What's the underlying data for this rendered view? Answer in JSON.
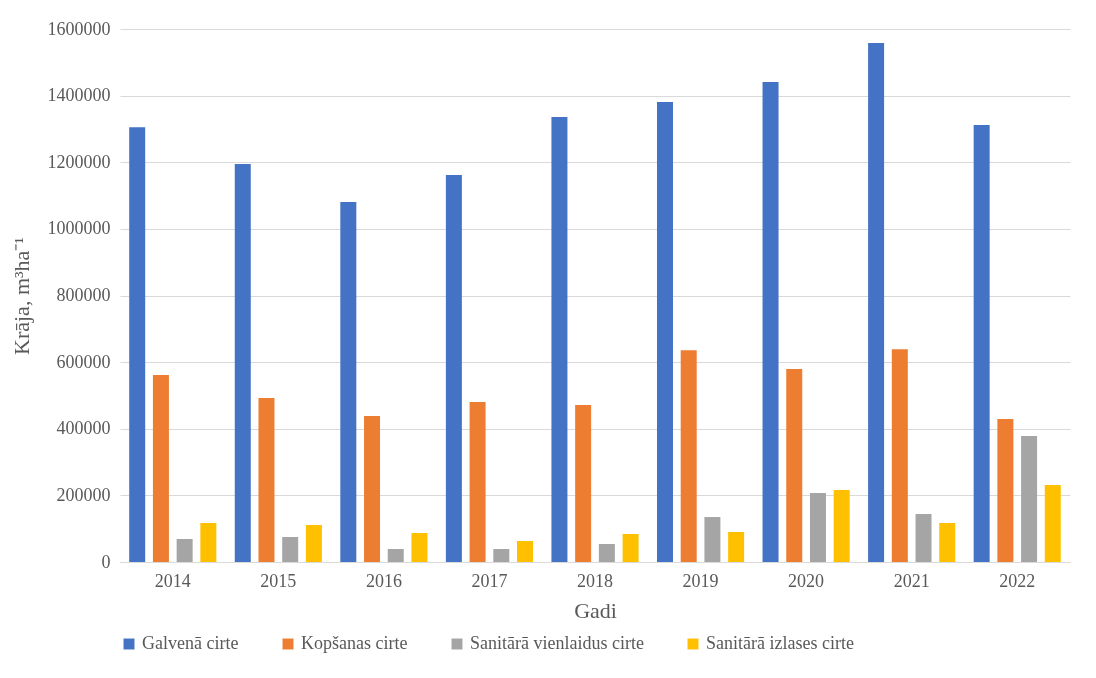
{
  "chart_data": {
    "type": "bar",
    "xlabel": "Gadi",
    "ylabel": "Krāja, m³ha⁻¹",
    "categories": [
      "2014",
      "2015",
      "2016",
      "2017",
      "2018",
      "2019",
      "2020",
      "2021",
      "2022"
    ],
    "series": [
      {
        "name": "Galvenā cirte",
        "color": "#4472c4",
        "values": [
          1305000,
          1195000,
          1081000,
          1162000,
          1336000,
          1381000,
          1441000,
          1558000,
          1312000
        ]
      },
      {
        "name": "Kopšanas cirte",
        "color": "#ed7d31",
        "values": [
          561000,
          492000,
          438000,
          480000,
          471000,
          636000,
          579000,
          639000,
          429000
        ]
      },
      {
        "name": "Sanitārā vienlaidus cirte",
        "color": "#a5a5a5",
        "values": [
          69000,
          75000,
          39000,
          39000,
          54000,
          135000,
          207000,
          144000,
          378000
        ]
      },
      {
        "name": "Sanitārā izlases cirte",
        "color": "#ffc000",
        "values": [
          117000,
          111000,
          87000,
          63000,
          84000,
          90000,
          216000,
          117000,
          231000
        ]
      }
    ],
    "ylim": [
      0,
      1600000
    ],
    "yticks": [
      0,
      200000,
      400000,
      600000,
      800000,
      1000000,
      1200000,
      1400000,
      1600000
    ],
    "grid": "y",
    "legend": "bottom"
  }
}
